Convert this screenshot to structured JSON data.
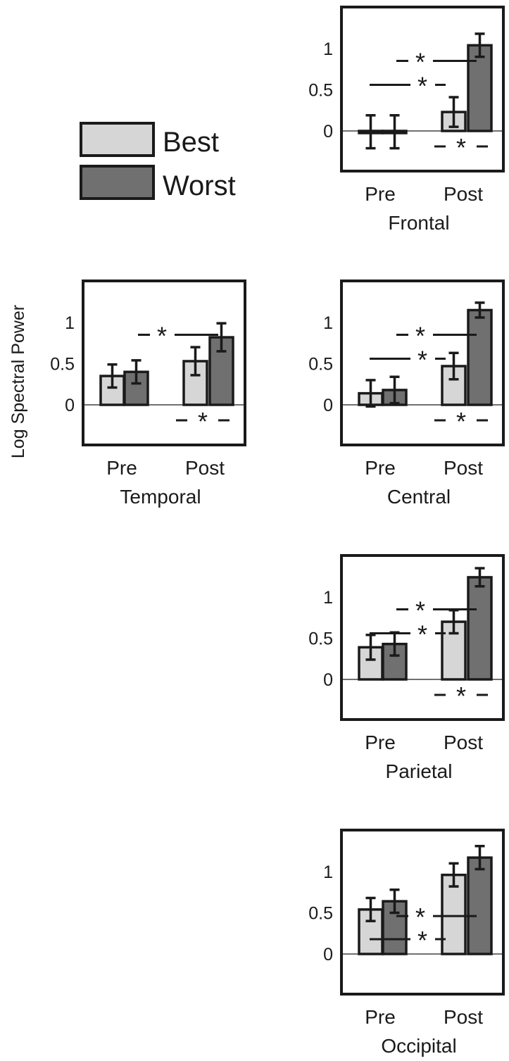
{
  "figure": {
    "ylabel": "Log Spectral Power",
    "legend": [
      {
        "label": "Best",
        "color": "#d6d6d6"
      },
      {
        "label": "Worst",
        "color": "#707070"
      }
    ],
    "colors": {
      "best": "#d6d6d6",
      "worst": "#707070",
      "stroke": "#1a1a1a"
    }
  },
  "chart_data": [
    {
      "type": "bar",
      "title": "Frontal",
      "categories": [
        "Pre",
        "Post"
      ],
      "series": [
        {
          "name": "Best",
          "values": [
            -0.01,
            0.23
          ],
          "errors": [
            0.2,
            0.18
          ]
        },
        {
          "name": "Worst",
          "values": [
            -0.01,
            1.04
          ],
          "errors": [
            0.2,
            0.14
          ]
        }
      ],
      "yticks": [
        "0",
        "0.5",
        "1"
      ],
      "ylim": [
        -0.5,
        1.5
      ],
      "significance": [
        {
          "from": [
            "Pre",
            "Best"
          ],
          "to": [
            "Post",
            "Best"
          ]
        },
        {
          "from": [
            "Pre",
            "Worst"
          ],
          "to": [
            "Post",
            "Worst"
          ]
        },
        {
          "from": [
            "Post",
            "Best"
          ],
          "to": [
            "Post",
            "Worst"
          ]
        }
      ],
      "sig_label": "*"
    },
    {
      "type": "bar",
      "title": "Temporal",
      "categories": [
        "Pre",
        "Post"
      ],
      "series": [
        {
          "name": "Best",
          "values": [
            0.35,
            0.53
          ],
          "errors": [
            0.14,
            0.17
          ]
        },
        {
          "name": "Worst",
          "values": [
            0.4,
            0.82
          ],
          "errors": [
            0.14,
            0.17
          ]
        }
      ],
      "yticks": [
        "0",
        "0.5",
        "1"
      ],
      "ylim": [
        -0.5,
        1.5
      ],
      "significance": [
        {
          "from": [
            "Pre",
            "Worst"
          ],
          "to": [
            "Post",
            "Worst"
          ]
        },
        {
          "from": [
            "Post",
            "Best"
          ],
          "to": [
            "Post",
            "Worst"
          ]
        }
      ],
      "sig_label": "*"
    },
    {
      "type": "bar",
      "title": "Central",
      "categories": [
        "Pre",
        "Post"
      ],
      "series": [
        {
          "name": "Best",
          "values": [
            0.14,
            0.47
          ],
          "errors": [
            0.16,
            0.16
          ]
        },
        {
          "name": "Worst",
          "values": [
            0.18,
            1.15
          ],
          "errors": [
            0.16,
            0.09
          ]
        }
      ],
      "yticks": [
        "0",
        "0.5",
        "1"
      ],
      "ylim": [
        -0.5,
        1.5
      ],
      "significance": [
        {
          "from": [
            "Pre",
            "Best"
          ],
          "to": [
            "Post",
            "Best"
          ]
        },
        {
          "from": [
            "Pre",
            "Worst"
          ],
          "to": [
            "Post",
            "Worst"
          ]
        },
        {
          "from": [
            "Post",
            "Best"
          ],
          "to": [
            "Post",
            "Worst"
          ]
        }
      ],
      "sig_label": "*"
    },
    {
      "type": "bar",
      "title": "Parietal",
      "categories": [
        "Pre",
        "Post"
      ],
      "series": [
        {
          "name": "Best",
          "values": [
            0.39,
            0.7
          ],
          "errors": [
            0.15,
            0.14
          ]
        },
        {
          "name": "Worst",
          "values": [
            0.43,
            1.24
          ],
          "errors": [
            0.14,
            0.11
          ]
        }
      ],
      "yticks": [
        "0",
        "0.5",
        "1"
      ],
      "ylim": [
        -0.5,
        1.5
      ],
      "significance": [
        {
          "from": [
            "Pre",
            "Best"
          ],
          "to": [
            "Post",
            "Best"
          ]
        },
        {
          "from": [
            "Pre",
            "Worst"
          ],
          "to": [
            "Post",
            "Worst"
          ]
        },
        {
          "from": [
            "Post",
            "Best"
          ],
          "to": [
            "Post",
            "Worst"
          ]
        }
      ],
      "sig_label": "*"
    },
    {
      "type": "bar",
      "title": "Occipital",
      "categories": [
        "Pre",
        "Post"
      ],
      "series": [
        {
          "name": "Best",
          "values": [
            0.54,
            0.96
          ],
          "errors": [
            0.14,
            0.14
          ]
        },
        {
          "name": "Worst",
          "values": [
            0.64,
            1.17
          ],
          "errors": [
            0.14,
            0.14
          ]
        }
      ],
      "yticks": [
        "0",
        "0.5",
        "1"
      ],
      "ylim": [
        -0.5,
        1.5
      ],
      "significance": [
        {
          "from": [
            "Pre",
            "Best"
          ],
          "to": [
            "Post",
            "Best"
          ]
        },
        {
          "from": [
            "Pre",
            "Worst"
          ],
          "to": [
            "Post",
            "Worst"
          ]
        }
      ],
      "sig_label": "*"
    }
  ]
}
